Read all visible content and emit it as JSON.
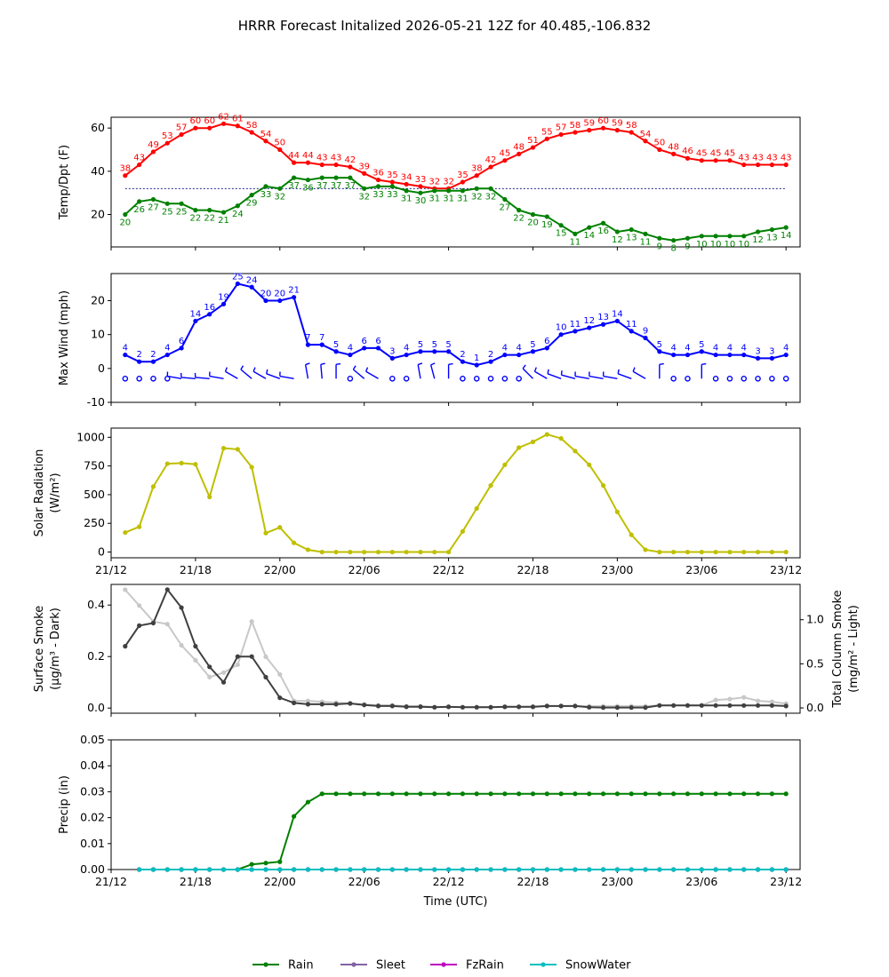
{
  "title": "HRRR Forecast Initalized 2026-05-21 12Z for 40.485,-106.832",
  "colors": {
    "temp": "#ff0000",
    "dewpoint": "#008000",
    "wind": "#0000ff",
    "solar": "#bfbf00",
    "smoke_surface": "#404040",
    "smoke_column": "#c8c8c8",
    "rain": "#008000",
    "sleet": "#8064a2",
    "fzrain": "#bf00bf",
    "snowwater": "#00bfbf"
  },
  "chart_data": [
    {
      "type": "line",
      "ylabel": "Temp/Dpt (F)",
      "x_hours_from_21_12z": [
        1,
        48
      ],
      "xlim": [
        0,
        49
      ],
      "ylim": [
        5,
        65
      ],
      "yticks": [
        20,
        40,
        60
      ],
      "freezing_line": 32,
      "series": [
        {
          "key": "temp",
          "values": [
            38,
            43,
            49,
            53,
            57,
            60,
            60,
            62,
            61,
            58,
            54,
            50,
            44,
            44,
            43,
            43,
            42,
            39,
            36,
            35,
            34,
            33,
            32,
            32,
            35,
            38,
            42,
            45,
            48,
            51,
            55,
            57,
            58,
            59,
            60,
            59,
            58,
            54,
            50,
            48,
            46,
            45,
            45,
            45,
            43,
            43,
            43,
            43
          ]
        },
        {
          "key": "dewpoint",
          "values": [
            20,
            26,
            27,
            25,
            25,
            22,
            22,
            21,
            24,
            29,
            33,
            32,
            37,
            36,
            37,
            37,
            37,
            32,
            33,
            33,
            31,
            30,
            31,
            31,
            31,
            32,
            32,
            27,
            22,
            20,
            19,
            15,
            11,
            14,
            16,
            12,
            13,
            11,
            9,
            8,
            9,
            10,
            10,
            10,
            10,
            12,
            13,
            14
          ]
        }
      ]
    },
    {
      "type": "line",
      "ylabel": "Max Wind (mph)",
      "xlim": [
        0,
        49
      ],
      "ylim": [
        -10,
        28
      ],
      "yticks": [
        -10,
        0,
        10,
        20
      ],
      "series": [
        {
          "key": "wind",
          "values": [
            4,
            2,
            2,
            4,
            6,
            14,
            16,
            19,
            25,
            24,
            20,
            20,
            21,
            7,
            7,
            5,
            4,
            6,
            6,
            3,
            4,
            5,
            5,
            5,
            2,
            1,
            2,
            4,
            4,
            5,
            6,
            10,
            11,
            12,
            13,
            14,
            11,
            9,
            5,
            4,
            4,
            5,
            4,
            4,
            4,
            3,
            3,
            4
          ]
        }
      ],
      "wind_direction_deg": [
        0,
        0,
        0,
        0,
        280,
        275,
        275,
        280,
        300,
        310,
        300,
        290,
        280,
        350,
        355,
        0,
        320,
        310,
        300,
        0,
        340,
        350,
        345,
        0,
        0,
        0,
        0,
        315,
        315,
        315,
        300,
        290,
        285,
        280,
        280,
        280,
        290,
        300,
        0,
        60,
        240,
        0,
        240,
        0,
        270,
        270,
        0,
        210
      ]
    },
    {
      "type": "line",
      "ylabel": "Solar Radiation",
      "ylabel_line2": "(W/m²)",
      "xlim": [
        0,
        49
      ],
      "ylim": [
        -50,
        1080
      ],
      "yticks": [
        0,
        250,
        500,
        750,
        1000
      ],
      "series": [
        {
          "key": "solar",
          "values": [
            170,
            220,
            570,
            770,
            775,
            765,
            480,
            905,
            895,
            740,
            165,
            215,
            80,
            20,
            0,
            0,
            0,
            0,
            0,
            0,
            0,
            0,
            0,
            0,
            180,
            380,
            580,
            760,
            910,
            960,
            1025,
            990,
            880,
            760,
            580,
            350,
            150,
            20,
            0,
            0,
            0,
            0,
            0,
            0,
            0,
            0,
            0,
            0
          ]
        }
      ]
    },
    {
      "type": "line",
      "ylabel": "Surface Smoke",
      "ylabel_line2": "(μg/m³ - Dark)",
      "ylabel_right": "Total Column Smoke",
      "ylabel_right_line2": "(mg/m² - Light)",
      "xlim": [
        0,
        49
      ],
      "ylim": [
        -0.02,
        0.48
      ],
      "yticks": [
        0.0,
        0.2,
        0.4
      ],
      "ylim_right": [
        -0.06,
        1.4
      ],
      "yticks_right": [
        0.0,
        0.5,
        1.0
      ],
      "series": [
        {
          "key": "smoke_surface",
          "values": [
            0.24,
            0.32,
            0.33,
            0.46,
            0.39,
            0.24,
            0.16,
            0.1,
            0.2,
            0.2,
            0.12,
            0.04,
            0.02,
            0.015,
            0.015,
            0.015,
            0.018,
            0.012,
            0.008,
            0.008,
            0.005,
            0.005,
            0.003,
            0.005,
            0.003,
            0.003,
            0.003,
            0.005,
            0.005,
            0.005,
            0.008,
            0.008,
            0.008,
            0.003,
            0.002,
            0.002,
            0.002,
            0.002,
            0.01,
            0.01,
            0.01,
            0.01,
            0.01,
            0.01,
            0.01,
            0.01,
            0.01,
            0.008
          ]
        },
        {
          "key": "smoke_column",
          "axis": "right",
          "values": [
            1.34,
            1.16,
            0.98,
            0.95,
            0.71,
            0.54,
            0.35,
            0.4,
            0.49,
            0.98,
            0.58,
            0.38,
            0.08,
            0.08,
            0.07,
            0.06,
            0.05,
            0.04,
            0.03,
            0.03,
            0.02,
            0.02,
            0.01,
            0.01,
            0.01,
            0.01,
            0.01,
            0.01,
            0.01,
            0.01,
            0.02,
            0.02,
            0.02,
            0.02,
            0.02,
            0.02,
            0.02,
            0.02,
            0.03,
            0.03,
            0.03,
            0.03,
            0.09,
            0.1,
            0.12,
            0.08,
            0.07,
            0.05
          ]
        }
      ]
    },
    {
      "type": "line",
      "ylabel": "Precip (in)",
      "xlabel": "Time (UTC)",
      "xlim": [
        0,
        49
      ],
      "ylim": [
        0,
        0.05
      ],
      "yticks": [
        0.0,
        0.01,
        0.02,
        0.03,
        0.04,
        0.05
      ],
      "x_start": 2,
      "series": [
        {
          "key": "rain",
          "name": "Rain",
          "values": [
            0,
            0,
            0,
            0,
            0,
            0,
            0,
            0,
            0.002,
            0.0025,
            0.003,
            0.0205,
            0.026,
            0.0292,
            0.0292,
            0.0292,
            0.0292,
            0.0292,
            0.0292,
            0.0292,
            0.0292,
            0.0292,
            0.0292,
            0.0292,
            0.0292,
            0.0292,
            0.0292,
            0.0292,
            0.0292,
            0.0292,
            0.0292,
            0.0292,
            0.0292,
            0.0292,
            0.0292,
            0.0292,
            0.0292,
            0.0292,
            0.0292,
            0.0292,
            0.0292,
            0.0292,
            0.0292,
            0.0292,
            0.0292,
            0.0292,
            0.0292
          ]
        },
        {
          "key": "sleet",
          "name": "Sleet",
          "values": [
            0,
            0,
            0,
            0,
            0,
            0,
            0,
            0,
            0,
            0,
            0,
            0,
            0,
            0,
            0,
            0,
            0,
            0,
            0,
            0,
            0,
            0,
            0,
            0,
            0,
            0,
            0,
            0,
            0,
            0,
            0,
            0,
            0,
            0,
            0,
            0,
            0,
            0,
            0,
            0,
            0,
            0,
            0,
            0,
            0,
            0,
            0
          ]
        },
        {
          "key": "fzrain",
          "name": "FzRain",
          "values": [
            0,
            0,
            0,
            0,
            0,
            0,
            0,
            0,
            0,
            0,
            0,
            0,
            0,
            0,
            0,
            0,
            0,
            0,
            0,
            0,
            0,
            0,
            0,
            0,
            0,
            0,
            0,
            0,
            0,
            0,
            0,
            0,
            0,
            0,
            0,
            0,
            0,
            0,
            0,
            0,
            0,
            0,
            0,
            0,
            0,
            0,
            0
          ]
        },
        {
          "key": "snowwater",
          "name": "SnowWater",
          "values": [
            0,
            0,
            0,
            0,
            0,
            0,
            0,
            0,
            0,
            0,
            0,
            0,
            0,
            0,
            0,
            0,
            0,
            0,
            0,
            0,
            0,
            0,
            0,
            0,
            0,
            0,
            0,
            0,
            0,
            0,
            0,
            0,
            0,
            0,
            0,
            0,
            0,
            0,
            0,
            0,
            0,
            0,
            0,
            0,
            0,
            0,
            0
          ]
        }
      ]
    }
  ],
  "x_ticks": {
    "hours": [
      0,
      6,
      12,
      18,
      24,
      30,
      36,
      42,
      48
    ],
    "labels": [
      "21/12",
      "21/18",
      "22/00",
      "22/06",
      "22/12",
      "22/18",
      "23/00",
      "23/06",
      "23/12"
    ]
  }
}
